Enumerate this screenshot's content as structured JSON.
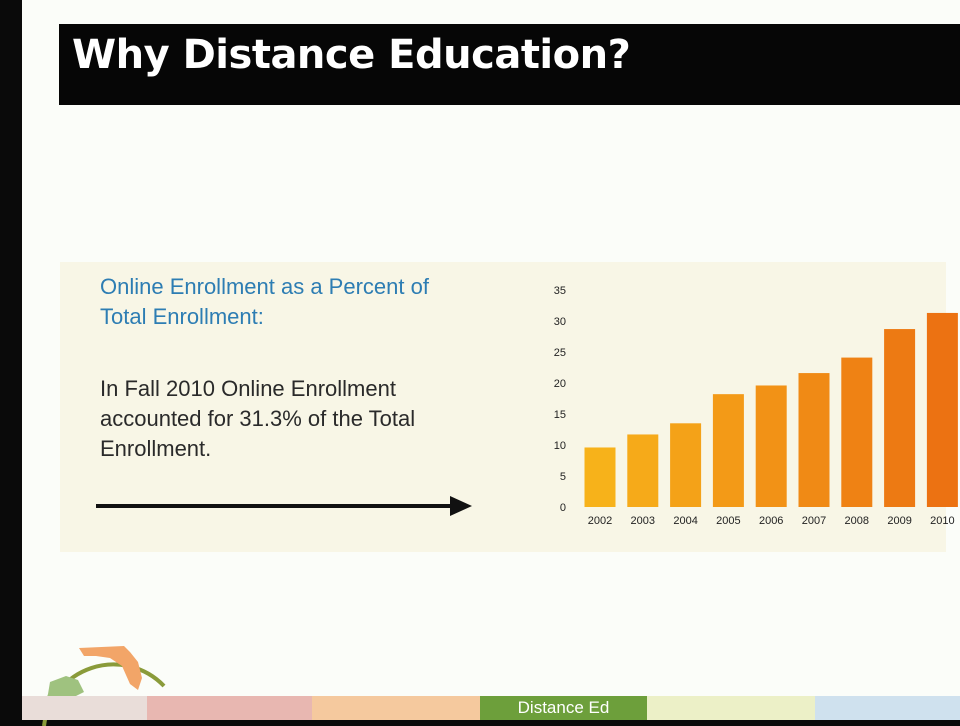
{
  "slide": {
    "title": "Why Distance Education?",
    "heading": "Online Enrollment as a Percent of Total Enrollment:",
    "body": "In Fall 2010 Online Enrollment accounted for 31.3% of the Total Enrollment.",
    "footer_label": "Distance Ed"
  },
  "colors": {
    "title_bg": "#060606",
    "heading": "#2d7db3",
    "bar_start": "#f7b21a",
    "bar_end": "#ec7212",
    "footer_green": "#6d9f3b"
  },
  "icons": [
    "florida-map-icon",
    "alaska-map-icon",
    "arrow-right-icon"
  ],
  "chart_data": {
    "type": "bar",
    "categories": [
      "2002",
      "2003",
      "2004",
      "2005",
      "2006",
      "2007",
      "2008",
      "2009",
      "2010"
    ],
    "values": [
      9.6,
      11.7,
      13.5,
      18.2,
      19.6,
      21.6,
      24.1,
      28.7,
      31.3
    ],
    "ylim": [
      0,
      35
    ],
    "yticks": [
      0,
      5,
      10,
      15,
      20,
      25,
      30,
      35
    ],
    "grid": false,
    "legend": "none"
  }
}
